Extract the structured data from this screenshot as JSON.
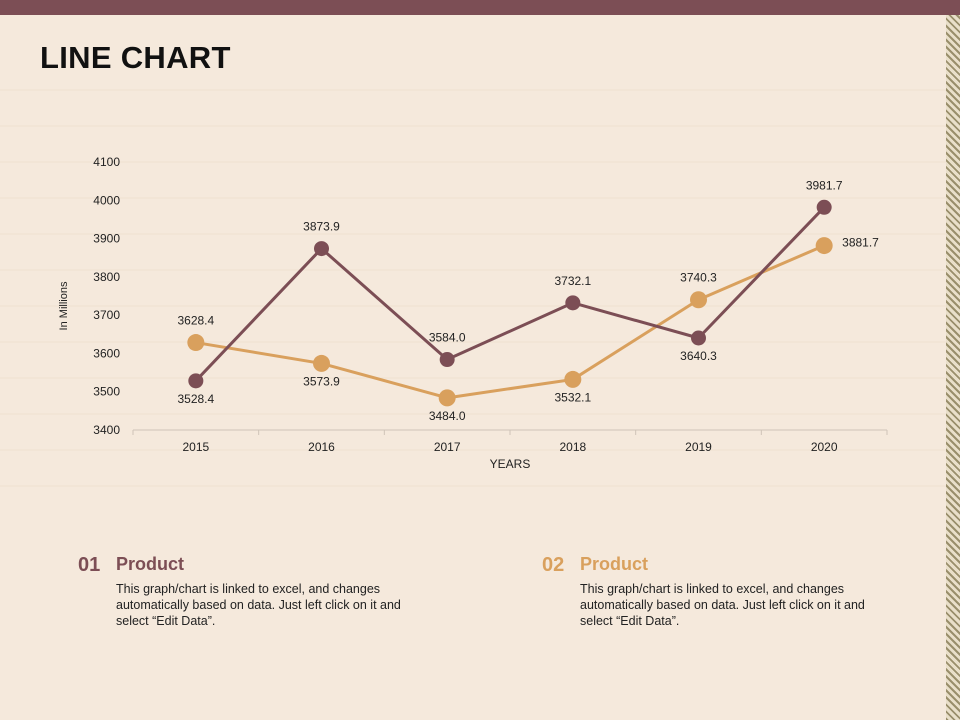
{
  "title": "LINE CHART",
  "colors": {
    "background": "#f5e9dc",
    "top_bar": "#7c4e55",
    "series_1": "#7c4e55",
    "series_2": "#d9a05d"
  },
  "chart_data": {
    "type": "line",
    "x": [
      "2015",
      "2016",
      "2017",
      "2018",
      "2019",
      "2020"
    ],
    "series": [
      {
        "values": [
          3528.4,
          3873.9,
          3584.0,
          3732.1,
          3640.3,
          3981.7
        ],
        "labels": [
          "3528.4",
          "3873.9",
          "3584.0",
          "3732.1",
          "3640.3",
          "3981.7"
        ]
      },
      {
        "values": [
          3628.4,
          3573.9,
          3484.0,
          3532.1,
          3740.3,
          3881.7
        ],
        "labels": [
          "3628.4",
          "3573.9",
          "3484.0",
          "3532.1",
          "3740.3",
          "3881.7"
        ]
      }
    ],
    "xlabel": "YEARS",
    "ylabel": "In Millions",
    "ylim": [
      3400,
      4100
    ],
    "yticks": [
      "3400",
      "3500",
      "3600",
      "3700",
      "3800",
      "3900",
      "4000",
      "4100"
    ],
    "grid": false,
    "legend": "none"
  },
  "info": [
    {
      "number": "01",
      "title": "Product",
      "text": "This graph/chart is linked to excel, and changes automatically based on data. Just left click on it and select “Edit Data”."
    },
    {
      "number": "02",
      "title": "Product",
      "text": "This graph/chart is linked to excel, and changes automatically based on data. Just left click on it and select “Edit Data”."
    }
  ]
}
